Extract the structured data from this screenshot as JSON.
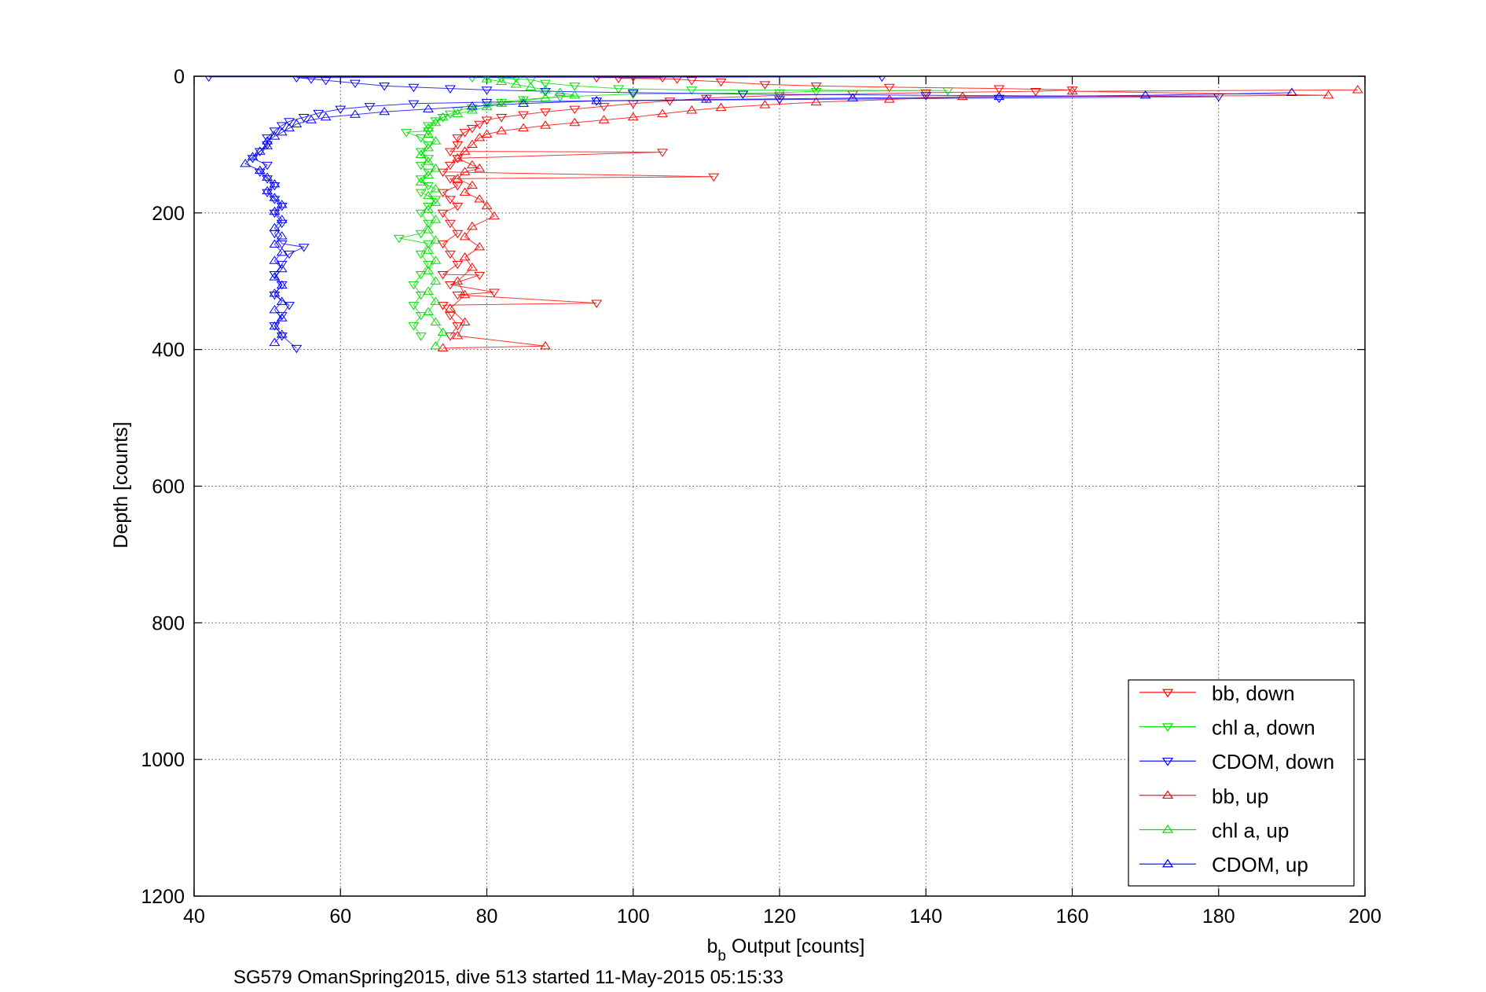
{
  "chart_data": {
    "type": "scatter",
    "xlabel_main": "b",
    "xlabel_sub": "b",
    "xlabel_rest": " Output [counts]",
    "ylabel": "Depth [counts]",
    "caption": "SG579 OmanSpring2015, dive 513 started 11-May-2015 05:15:33",
    "xlim": [
      40,
      200
    ],
    "ylim": [
      0,
      1200
    ],
    "y_reversed": true,
    "grid": true,
    "legend_position": "bottom-right",
    "x_ticks": [
      "40",
      "60",
      "80",
      "100",
      "120",
      "140",
      "160",
      "180",
      "200"
    ],
    "y_ticks": [
      "0",
      "200",
      "400",
      "600",
      "800",
      "1000",
      "1200"
    ],
    "series": [
      {
        "name": "bb, down",
        "color": "#ff0000",
        "marker": "triangle-down",
        "points": [
          [
            95,
            2
          ],
          [
            98,
            3
          ],
          [
            100,
            1
          ],
          [
            104,
            2
          ],
          [
            106,
            4
          ],
          [
            108,
            6
          ],
          [
            112,
            8
          ],
          [
            118,
            12
          ],
          [
            125,
            14
          ],
          [
            135,
            16
          ],
          [
            150,
            18
          ],
          [
            160,
            20
          ],
          [
            155,
            22
          ],
          [
            140,
            24
          ],
          [
            130,
            26
          ],
          [
            120,
            28
          ],
          [
            110,
            32
          ],
          [
            105,
            36
          ],
          [
            100,
            40
          ],
          [
            96,
            44
          ],
          [
            92,
            48
          ],
          [
            88,
            52
          ],
          [
            85,
            56
          ],
          [
            82,
            60
          ],
          [
            80,
            64
          ],
          [
            79,
            70
          ],
          [
            78,
            76
          ],
          [
            77,
            82
          ],
          [
            76,
            90
          ],
          [
            76,
            100
          ],
          [
            75,
            110
          ],
          [
            76,
            120
          ],
          [
            75,
            130
          ],
          [
            74,
            140
          ],
          [
            75,
            150
          ],
          [
            76,
            160
          ],
          [
            74,
            170
          ],
          [
            75,
            180
          ],
          [
            76,
            190
          ],
          [
            74,
            200
          ],
          [
            75,
            215
          ],
          [
            76,
            230
          ],
          [
            74,
            245
          ],
          [
            75,
            260
          ],
          [
            76,
            275
          ],
          [
            74,
            290
          ],
          [
            75,
            305
          ],
          [
            76,
            320
          ],
          [
            74,
            335
          ],
          [
            75,
            350
          ],
          [
            76,
            365
          ],
          [
            75,
            380
          ],
          [
            104,
            111
          ],
          [
            111,
            147
          ],
          [
            95,
            332
          ],
          [
            81,
            316
          ],
          [
            79,
            291
          ]
        ]
      },
      {
        "name": "chl a, down",
        "color": "#00e000",
        "marker": "triangle-down",
        "points": [
          [
            78,
            2
          ],
          [
            80,
            1
          ],
          [
            82,
            3
          ],
          [
            84,
            2
          ],
          [
            86,
            5
          ],
          [
            88,
            10
          ],
          [
            92,
            14
          ],
          [
            98,
            18
          ],
          [
            108,
            20
          ],
          [
            125,
            22
          ],
          [
            143,
            21
          ],
          [
            120,
            24
          ],
          [
            100,
            26
          ],
          [
            90,
            30
          ],
          [
            85,
            34
          ],
          [
            82,
            38
          ],
          [
            80,
            42
          ],
          [
            78,
            46
          ],
          [
            76,
            50
          ],
          [
            75,
            55
          ],
          [
            74,
            60
          ],
          [
            73,
            65
          ],
          [
            72,
            72
          ],
          [
            72,
            80
          ],
          [
            71,
            90
          ],
          [
            72,
            100
          ],
          [
            71,
            110
          ],
          [
            72,
            120
          ],
          [
            71,
            130
          ],
          [
            72,
            140
          ],
          [
            71,
            150
          ],
          [
            72,
            160
          ],
          [
            71,
            170
          ],
          [
            73,
            180
          ],
          [
            72,
            190
          ],
          [
            71,
            200
          ],
          [
            72,
            215
          ],
          [
            71,
            230
          ],
          [
            72,
            245
          ],
          [
            71,
            260
          ],
          [
            72,
            275
          ],
          [
            71,
            290
          ],
          [
            70,
            305
          ],
          [
            71,
            320
          ],
          [
            70,
            335
          ],
          [
            71,
            350
          ],
          [
            70,
            365
          ],
          [
            71,
            380
          ],
          [
            68,
            237
          ],
          [
            69,
            82
          ]
        ]
      },
      {
        "name": "CDOM, down",
        "color": "#0000ff",
        "marker": "triangle-down",
        "points": [
          [
            42,
            1
          ],
          [
            134,
            1
          ],
          [
            54,
            2
          ],
          [
            56,
            4
          ],
          [
            58,
            6
          ],
          [
            62,
            10
          ],
          [
            66,
            14
          ],
          [
            70,
            16
          ],
          [
            75,
            18
          ],
          [
            80,
            20
          ],
          [
            88,
            22
          ],
          [
            100,
            24
          ],
          [
            115,
            26
          ],
          [
            140,
            28
          ],
          [
            180,
            30
          ],
          [
            150,
            32
          ],
          [
            120,
            34
          ],
          [
            95,
            36
          ],
          [
            80,
            38
          ],
          [
            70,
            40
          ],
          [
            64,
            44
          ],
          [
            60,
            48
          ],
          [
            57,
            54
          ],
          [
            55,
            60
          ],
          [
            53,
            66
          ],
          [
            52,
            72
          ],
          [
            51,
            80
          ],
          [
            50,
            90
          ],
          [
            50,
            100
          ],
          [
            49,
            110
          ],
          [
            48,
            120
          ],
          [
            50,
            130
          ],
          [
            49,
            140
          ],
          [
            50,
            150
          ],
          [
            51,
            160
          ],
          [
            50,
            170
          ],
          [
            51,
            180
          ],
          [
            52,
            190
          ],
          [
            51,
            200
          ],
          [
            52,
            215
          ],
          [
            51,
            230
          ],
          [
            52,
            245
          ],
          [
            53,
            260
          ],
          [
            52,
            275
          ],
          [
            51,
            290
          ],
          [
            52,
            305
          ],
          [
            51,
            320
          ],
          [
            53,
            335
          ],
          [
            52,
            350
          ],
          [
            51,
            365
          ],
          [
            52,
            380
          ],
          [
            54,
            398
          ],
          [
            55,
            250
          ]
        ]
      },
      {
        "name": "bb, up",
        "color": "#ff0000",
        "marker": "triangle-up",
        "points": [
          [
            199,
            20
          ],
          [
            195,
            28
          ],
          [
            160,
            22
          ],
          [
            145,
            30
          ],
          [
            135,
            34
          ],
          [
            125,
            38
          ],
          [
            118,
            42
          ],
          [
            112,
            46
          ],
          [
            108,
            50
          ],
          [
            104,
            55
          ],
          [
            100,
            60
          ],
          [
            96,
            64
          ],
          [
            92,
            68
          ],
          [
            88,
            72
          ],
          [
            85,
            76
          ],
          [
            82,
            80
          ],
          [
            80,
            85
          ],
          [
            79,
            90
          ],
          [
            78,
            100
          ],
          [
            77,
            110
          ],
          [
            76,
            120
          ],
          [
            78,
            130
          ],
          [
            77,
            140
          ],
          [
            76,
            150
          ],
          [
            78,
            160
          ],
          [
            77,
            170
          ],
          [
            79,
            180
          ],
          [
            80,
            190
          ],
          [
            81,
            205
          ],
          [
            78,
            220
          ],
          [
            77,
            235
          ],
          [
            79,
            250
          ],
          [
            77,
            265
          ],
          [
            78,
            280
          ],
          [
            76,
            300
          ],
          [
            77,
            320
          ],
          [
            75,
            340
          ],
          [
            77,
            360
          ],
          [
            76,
            380
          ],
          [
            74,
            398
          ],
          [
            88,
            395
          ],
          [
            79,
            135
          ]
        ]
      },
      {
        "name": "chl a, up",
        "color": "#00e000",
        "marker": "triangle-up",
        "points": [
          [
            80,
            4
          ],
          [
            82,
            8
          ],
          [
            84,
            12
          ],
          [
            86,
            16
          ],
          [
            88,
            20
          ],
          [
            90,
            24
          ],
          [
            92,
            28
          ],
          [
            88,
            32
          ],
          [
            85,
            36
          ],
          [
            82,
            40
          ],
          [
            80,
            45
          ],
          [
            78,
            50
          ],
          [
            76,
            55
          ],
          [
            74,
            60
          ],
          [
            73,
            68
          ],
          [
            72,
            76
          ],
          [
            72,
            85
          ],
          [
            73,
            95
          ],
          [
            72,
            105
          ],
          [
            71,
            115
          ],
          [
            72,
            125
          ],
          [
            73,
            135
          ],
          [
            72,
            145
          ],
          [
            71,
            155
          ],
          [
            73,
            165
          ],
          [
            72,
            175
          ],
          [
            73,
            185
          ],
          [
            72,
            195
          ],
          [
            73,
            210
          ],
          [
            72,
            225
          ],
          [
            73,
            240
          ],
          [
            72,
            255
          ],
          [
            73,
            270
          ],
          [
            72,
            285
          ],
          [
            73,
            300
          ],
          [
            72,
            315
          ],
          [
            73,
            330
          ],
          [
            72,
            345
          ],
          [
            73,
            360
          ],
          [
            74,
            375
          ],
          [
            73,
            395
          ]
        ]
      },
      {
        "name": "CDOM, up",
        "color": "#0000ff",
        "marker": "triangle-up",
        "points": [
          [
            190,
            24
          ],
          [
            170,
            28
          ],
          [
            150,
            30
          ],
          [
            130,
            32
          ],
          [
            110,
            34
          ],
          [
            95,
            36
          ],
          [
            85,
            40
          ],
          [
            78,
            44
          ],
          [
            72,
            48
          ],
          [
            66,
            52
          ],
          [
            62,
            56
          ],
          [
            58,
            60
          ],
          [
            56,
            64
          ],
          [
            54,
            70
          ],
          [
            53,
            76
          ],
          [
            52,
            82
          ],
          [
            51,
            88
          ],
          [
            50,
            95
          ],
          [
            50,
            102
          ],
          [
            49,
            110
          ],
          [
            48,
            118
          ],
          [
            47,
            128
          ],
          [
            49,
            138
          ],
          [
            50,
            148
          ],
          [
            51,
            158
          ],
          [
            50,
            168
          ],
          [
            51,
            178
          ],
          [
            52,
            188
          ],
          [
            51,
            198
          ],
          [
            52,
            210
          ],
          [
            51,
            222
          ],
          [
            52,
            234
          ],
          [
            51,
            246
          ],
          [
            52,
            258
          ],
          [
            51,
            270
          ],
          [
            52,
            282
          ],
          [
            51,
            294
          ],
          [
            52,
            306
          ],
          [
            51,
            318
          ],
          [
            52,
            330
          ],
          [
            51,
            342
          ],
          [
            52,
            354
          ],
          [
            51,
            366
          ],
          [
            52,
            378
          ],
          [
            51,
            390
          ]
        ]
      }
    ]
  }
}
